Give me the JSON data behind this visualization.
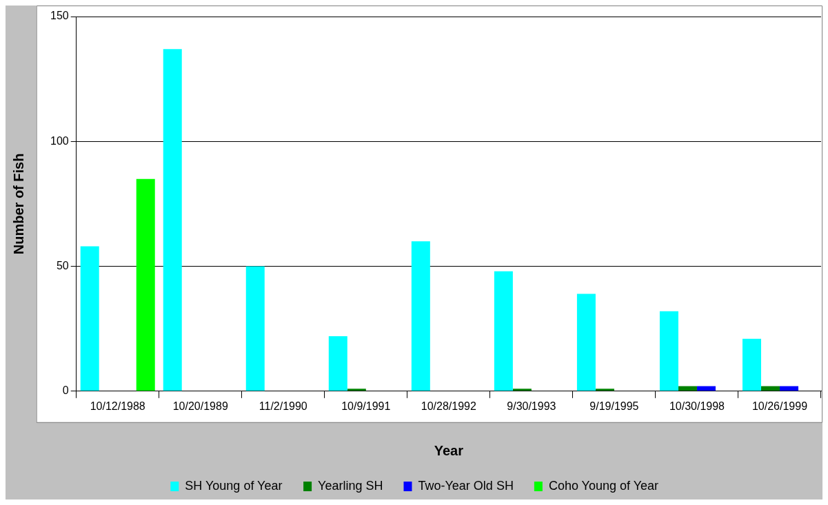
{
  "chart_data": {
    "type": "bar",
    "xlabel": "Year",
    "ylabel": "Number of Fish",
    "categories": [
      "10/12/1988",
      "10/20/1989",
      "11/2/1990",
      "10/9/1991",
      "10/28/1992",
      "9/30/1993",
      "9/19/1995",
      "10/30/1998",
      "10/26/1999"
    ],
    "series": [
      {
        "name": "SH Young of Year",
        "color": "#00ffff",
        "values": [
          58,
          137,
          50,
          22,
          60,
          48,
          39,
          32,
          21
        ]
      },
      {
        "name": "Yearling SH",
        "color": "#008000",
        "values": [
          0,
          0,
          0,
          1,
          0,
          1,
          1,
          2,
          2
        ]
      },
      {
        "name": "Two-Year Old SH",
        "color": "#0000ff",
        "values": [
          0,
          0,
          0,
          0,
          0,
          0,
          0,
          2,
          2
        ]
      },
      {
        "name": "Coho Young of Year",
        "color": "#00ff00",
        "values": [
          85,
          0,
          0,
          0,
          0,
          0,
          0,
          0,
          0
        ]
      }
    ],
    "ylim": [
      0,
      150
    ],
    "yticks": [
      0,
      50,
      100,
      150
    ],
    "grid": "y",
    "legend": "bottom"
  }
}
